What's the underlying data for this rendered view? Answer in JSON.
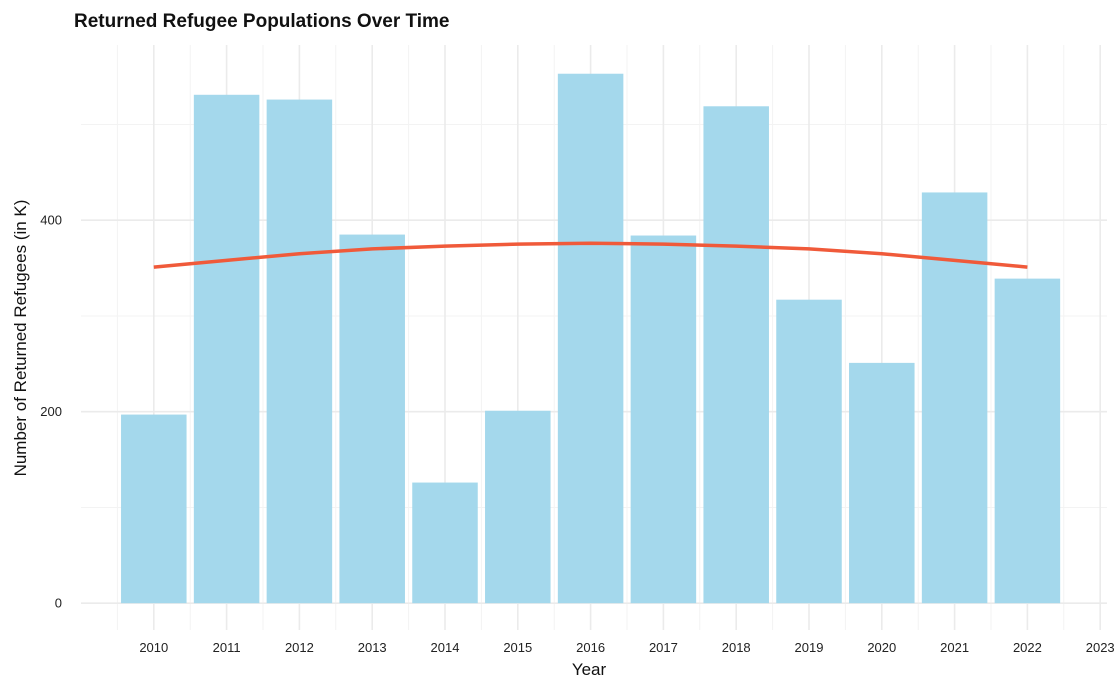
{
  "chart_data": {
    "type": "bar",
    "title": "Returned Refugee Populations Over Time",
    "xlabel": "Year",
    "ylabel": "Number of Returned Refugees (in K)",
    "categories": [
      "2010",
      "2011",
      "2012",
      "2013",
      "2014",
      "2015",
      "2016",
      "2017",
      "2018",
      "2019",
      "2020",
      "2021",
      "2022"
    ],
    "values": [
      197,
      531,
      526,
      385,
      126,
      201,
      553,
      384,
      519,
      317,
      251,
      429,
      339
    ],
    "x_ticks": [
      "2010",
      "2011",
      "2012",
      "2013",
      "2014",
      "2015",
      "2016",
      "2017",
      "2018",
      "2019",
      "2020",
      "2021",
      "2022",
      "2023"
    ],
    "y_ticks": [
      0,
      200,
      400
    ],
    "ylim": [
      -28,
      583
    ],
    "grid": true,
    "legend": "none",
    "trend": {
      "type": "line",
      "x": [
        "2010",
        "2011",
        "2012",
        "2013",
        "2014",
        "2015",
        "2016",
        "2017",
        "2018",
        "2019",
        "2020",
        "2021",
        "2022"
      ],
      "values": [
        351,
        358,
        365,
        370,
        373,
        375,
        376,
        375,
        373,
        370,
        365,
        358,
        351
      ]
    },
    "colors": {
      "bar": "#a4d8ec",
      "trend": "#f05a3a",
      "grid": "#ebebeb"
    }
  }
}
